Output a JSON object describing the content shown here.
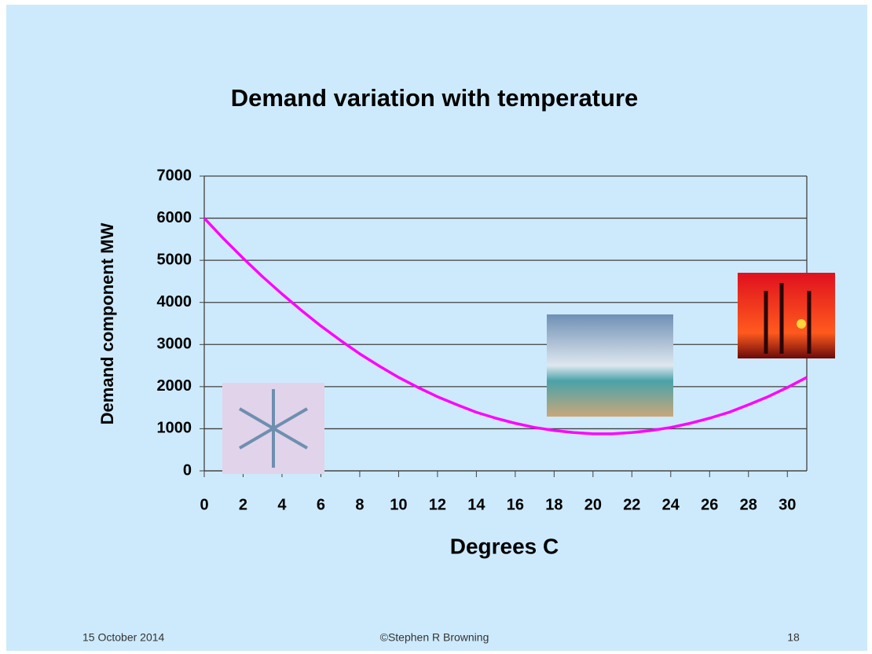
{
  "chart_data": {
    "type": "line",
    "title": "Demand variation with temperature",
    "x_label": "Degrees C",
    "y_label": "Demand component MW",
    "x": [
      0,
      1,
      2,
      3,
      4,
      5,
      6,
      7,
      8,
      9,
      10,
      11,
      12,
      13,
      14,
      15,
      16,
      17,
      18,
      19,
      20,
      21,
      22,
      23,
      24,
      25,
      26,
      27,
      28,
      29,
      30,
      31
    ],
    "values": [
      6000,
      5510,
      5050,
      4610,
      4200,
      3810,
      3440,
      3100,
      2780,
      2490,
      2220,
      1980,
      1760,
      1570,
      1390,
      1250,
      1130,
      1030,
      960,
      910,
      880,
      880,
      910,
      960,
      1030,
      1130,
      1250,
      1390,
      1570,
      1760,
      1980,
      2220
    ],
    "color": "#ff00ff",
    "xlim": [
      0,
      31
    ],
    "xticks": [
      0,
      2,
      4,
      6,
      8,
      10,
      12,
      14,
      16,
      18,
      20,
      22,
      24,
      26,
      28,
      30
    ],
    "ylim": [
      0,
      7000
    ],
    "yticks": [
      0,
      1000,
      2000,
      3000,
      4000,
      5000,
      6000,
      7000
    ],
    "grid": true
  },
  "footer": {
    "date": "15 October 2014",
    "author": "©Stephen R Browning",
    "page": "18"
  }
}
